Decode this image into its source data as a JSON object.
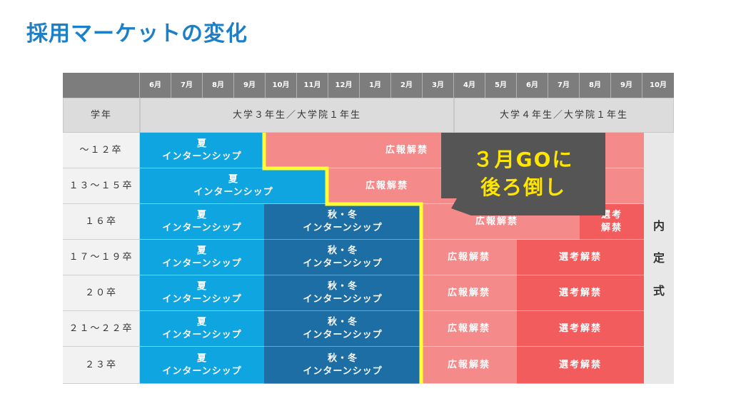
{
  "title": "採用マーケットの変化",
  "months": [
    "6月",
    "7月",
    "8月",
    "9月",
    "10月",
    "11月",
    "12月",
    "1月",
    "2月",
    "3月",
    "4月",
    "5月",
    "6月",
    "7月",
    "8月",
    "9月",
    "10月"
  ],
  "header": {
    "grade": "学年",
    "period1": "大学３年生／大学院１年生",
    "period2": "大学４年生／大学院１年生"
  },
  "rows": [
    "～１２卒",
    "１３～１５卒",
    "１６卒",
    "１７～１９卒",
    "２０卒",
    "２１～２２卒",
    "２３卒"
  ],
  "labels": {
    "summer": "夏\nインターンシップ",
    "summer_wide": "夏\nインターンシップ",
    "autumn": "秋・冬\nインターンシップ",
    "pr": "広報解禁",
    "selection": "選考解禁",
    "selection_short": "選考\n解禁",
    "ceremony": [
      "内",
      "定",
      "式"
    ]
  },
  "callout": {
    "text_line1": "３月GOに",
    "text_line2": "後ろ倒し"
  },
  "colors": {
    "title": "#1d7fc8",
    "summer": "#0ea5e0",
    "autumn": "#1e6ea6",
    "pr": "#f58a8a",
    "selection": "#f25c5c",
    "boundary": "#ffff33",
    "callout_bg": "#555555",
    "callout_text": "#ffe600"
  }
}
